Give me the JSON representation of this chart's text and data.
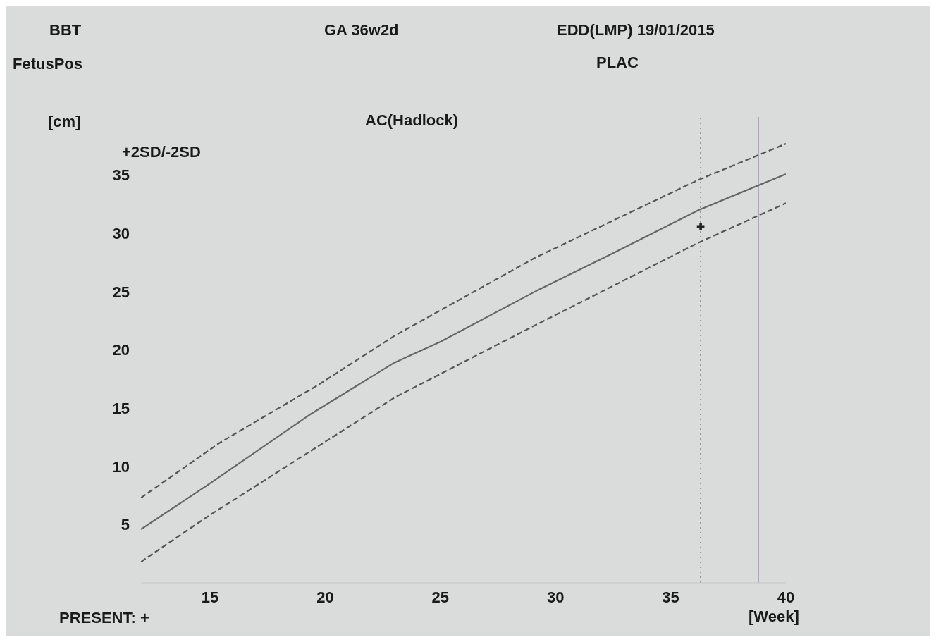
{
  "chart_data": {
    "type": "line",
    "title": "AC(Hadlock)",
    "xlabel": "[Week]",
    "ylabel": "[cm]",
    "annotations": [
      "BBT",
      "GA  36w2d",
      "EDD(LMP)   19/01/2015",
      "FetusPos",
      "PLAC",
      "+2SD/-2SD",
      "PRESENT:   +"
    ],
    "series": [
      {
        "color": "#666666",
        "line_style": "solid",
        "x": [
          12,
          14.9,
          19.3,
          23,
          25,
          29.1,
          32.5,
          36.2,
          40
        ],
        "values": [
          4.6,
          8.4,
          14.4,
          18.9,
          20.7,
          25,
          28.3,
          32,
          35.1
        ]
      },
      {
        "color": "#555555",
        "line_style": "dashed",
        "x": [
          12,
          15.4,
          19.7,
          23,
          29.1,
          36.2,
          40
        ],
        "values": [
          7.3,
          12,
          17,
          21.2,
          27.9,
          34.6,
          37.7
        ]
      },
      {
        "color": "#555555",
        "line_style": "dashed",
        "x": [
          12,
          14.9,
          21.9,
          23,
          29.1,
          36.2,
          40
        ],
        "values": [
          1.8,
          5.7,
          14.5,
          15.9,
          22.1,
          29.2,
          32.6
        ]
      },
      {
        "type": "scatter",
        "color": "#222222",
        "marker": "cross",
        "x": [
          36.3
        ],
        "values": [
          30.6
        ]
      }
    ],
    "ref_lines": [
      {
        "axis": "x",
        "value": 36.3,
        "line_style": "dotted",
        "color": "#777777"
      },
      {
        "axis": "x",
        "value": 38.8,
        "line_style": "solid",
        "color": "#8a7a9a"
      }
    ],
    "xlim": [
      12,
      40
    ],
    "xticks": [
      15,
      20,
      25,
      30,
      35,
      40
    ],
    "ylim": [
      0,
      40
    ],
    "yticks": [
      5,
      10,
      15,
      20,
      25,
      30,
      35
    ],
    "grid": false,
    "legend": false
  }
}
